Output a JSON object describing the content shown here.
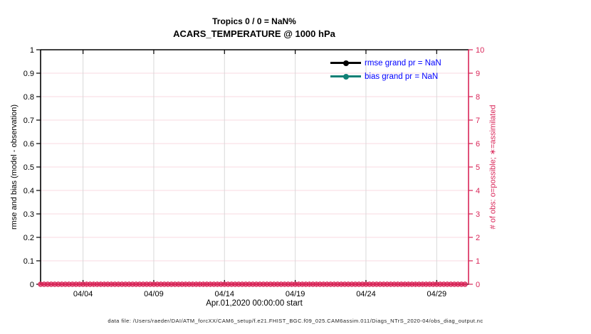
{
  "title": {
    "line1": "Tropics 0 / 0 = NaN%",
    "line2": "ACARS_TEMPERATURE @ 1000 hPa"
  },
  "legend": {
    "text_color": "#0000ff",
    "items": [
      {
        "label": "rmse grand pr = NaN",
        "color": "#000000"
      },
      {
        "label": "bias grand pr = NaN",
        "color": "#108076"
      }
    ]
  },
  "footer": {
    "data_file_note": "data file: /Users/raeder/DAI/ATM_forcXX/CAM6_setup/f.e21.FHIST_BGC.f09_025.CAM6assim.011/Diags_NTrS_2020-04/obs_diag_output.nc"
  },
  "colors": {
    "box": "#000000",
    "right_axis": "#d92558",
    "grid_h": "rgba(217,37,88,0.18)",
    "grid_v": "#d9d9d9"
  },
  "chart_data": {
    "type": "scatter",
    "title": "Tropics 0 / 0 = NaN%",
    "subtitle": "ACARS_TEMPERATURE @ 1000 hPa",
    "xlabel": "Apr.01,2020 00:00:00 start",
    "ylabel_left": "rmse and bias (model - observation)",
    "ylabel_right": "# of obs: o=possible; ∗=assimilated",
    "grid": true,
    "legend_position": "top-right-inside",
    "x_range_days": [
      0,
      30.25
    ],
    "x_tick_days": [
      3,
      8,
      13,
      18,
      23,
      28
    ],
    "x_tick_labels": [
      "04/04",
      "04/09",
      "04/14",
      "04/19",
      "04/24",
      "04/29"
    ],
    "ylim_left": [
      0,
      1
    ],
    "yticks_left": [
      "0",
      "0.1",
      "0.2",
      "0.3",
      "0.4",
      "0.5",
      "0.6",
      "0.7",
      "0.8",
      "0.9",
      "1"
    ],
    "ylim_right": [
      0,
      10
    ],
    "yticks_right": [
      "0",
      "1",
      "2",
      "3",
      "4",
      "5",
      "6",
      "7",
      "8",
      "9",
      "10"
    ],
    "series": [
      {
        "name": "rmse grand pr = NaN",
        "type": "line",
        "axis": "left",
        "color": "#000000",
        "marker": "filled-circle",
        "values": []
      },
      {
        "name": "bias grand pr = NaN",
        "type": "line",
        "axis": "left",
        "color": "#108076",
        "marker": "filled-circle",
        "values": []
      },
      {
        "name": "possible obs (o)",
        "type": "scatter",
        "axis": "right",
        "color": "#d92558",
        "marker": "o",
        "x_days": {
          "start": 0,
          "end": 30,
          "step": 0.25
        },
        "constant_y": 0
      },
      {
        "name": "assimilated obs (*)",
        "type": "scatter",
        "axis": "right",
        "color": "#d92558",
        "marker": "*",
        "x_days": {
          "start": 0,
          "end": 30,
          "step": 0.25
        },
        "constant_y": 0
      }
    ]
  }
}
